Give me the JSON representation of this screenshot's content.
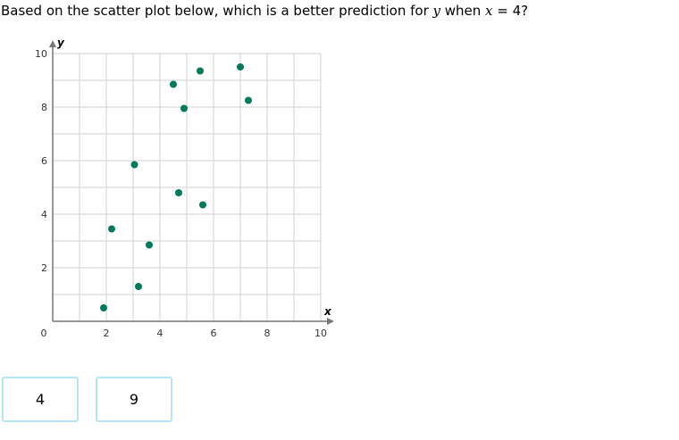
{
  "question": {
    "part1": "Based on the scatter plot below, which is a better prediction for ",
    "var_y": "y",
    "part2": " when ",
    "var_x": "x",
    "part3": " = 4?"
  },
  "choices": [
    "4",
    "9"
  ],
  "colors": {
    "point": "#007a5a",
    "grid": "#d0d0d0",
    "axis": "#777777",
    "choice_border": "#b4e6f2"
  },
  "chart_data": {
    "type": "scatter",
    "xlabel": "x",
    "ylabel": "y",
    "xlim": [
      0,
      10
    ],
    "ylim": [
      0,
      10
    ],
    "grid": true,
    "x_ticks": [
      "2",
      "4",
      "6",
      "8",
      "10"
    ],
    "y_ticks": [
      "2",
      "4",
      "6",
      "8",
      "10"
    ],
    "origin_label": "0",
    "points": [
      {
        "x": 1.9,
        "y": 0.5
      },
      {
        "x": 2.2,
        "y": 3.45
      },
      {
        "x": 3.05,
        "y": 5.85
      },
      {
        "x": 3.2,
        "y": 1.3
      },
      {
        "x": 3.6,
        "y": 2.85
      },
      {
        "x": 4.5,
        "y": 8.85
      },
      {
        "x": 4.7,
        "y": 4.8
      },
      {
        "x": 4.9,
        "y": 7.95
      },
      {
        "x": 5.5,
        "y": 9.35
      },
      {
        "x": 5.6,
        "y": 4.35
      },
      {
        "x": 7.0,
        "y": 9.5
      },
      {
        "x": 7.3,
        "y": 8.25
      }
    ]
  }
}
